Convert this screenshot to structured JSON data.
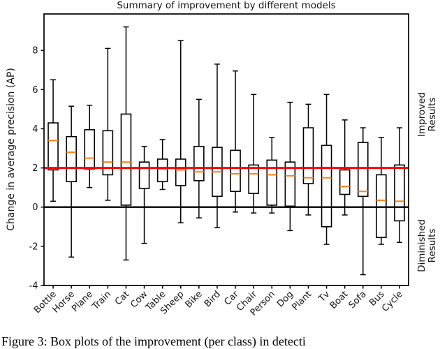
{
  "page": {
    "caption": "Figure 3: Box plots of the improvement (per class) in detecti"
  },
  "chart_data": {
    "type": "boxplot",
    "title": "Summary of improvement by different models",
    "ylabel": "Change in average precision (AP)",
    "yticks": [
      -4,
      -2,
      0,
      2,
      4,
      6,
      8
    ],
    "ylim": [
      -4,
      9.86
    ],
    "grid": false,
    "box_color": "#000000",
    "median_color": "#ff7f0e",
    "categories": [
      "Bottle",
      "Horse",
      "Plane",
      "Train",
      "Cat",
      "Cow",
      "Table",
      "Sheep",
      "Bike",
      "Bird",
      "Car",
      "Chair",
      "Person",
      "Dog",
      "Plant",
      "Tv",
      "Boat",
      "Sofa",
      "Bus",
      "Cycle"
    ],
    "boxes": [
      {
        "label": "Bottle",
        "whislo": 0.3,
        "q1": 1.9,
        "median": 3.4,
        "q3": 4.3,
        "whishi": 6.5
      },
      {
        "label": "Horse",
        "whislo": -2.55,
        "q1": 1.3,
        "median": 2.8,
        "q3": 3.6,
        "whishi": 5.15
      },
      {
        "label": "Plane",
        "whislo": 1.0,
        "q1": 1.95,
        "median": 2.5,
        "q3": 3.95,
        "whishi": 5.2
      },
      {
        "label": "Train",
        "whislo": 0.35,
        "q1": 1.65,
        "median": 2.3,
        "q3": 3.9,
        "whishi": 8.1
      },
      {
        "label": "Cat",
        "whislo": -2.7,
        "q1": 0.1,
        "median": 2.3,
        "q3": 4.75,
        "whishi": 9.2
      },
      {
        "label": "Cow",
        "whislo": -1.85,
        "q1": 0.95,
        "median": 2.0,
        "q3": 2.3,
        "whishi": 3.1
      },
      {
        "label": "Table",
        "whislo": 0.9,
        "q1": 1.3,
        "median": 1.95,
        "q3": 2.45,
        "whishi": 3.45
      },
      {
        "label": "Sheep",
        "whislo": -0.8,
        "q1": 1.1,
        "median": 1.9,
        "q3": 2.45,
        "whishi": 8.5
      },
      {
        "label": "Bike",
        "whislo": -0.55,
        "q1": 1.35,
        "median": 1.8,
        "q3": 3.1,
        "whishi": 5.5
      },
      {
        "label": "Bird",
        "whislo": -1.05,
        "q1": 0.55,
        "median": 1.8,
        "q3": 3.05,
        "whishi": 7.3
      },
      {
        "label": "Car",
        "whislo": -0.25,
        "q1": 0.8,
        "median": 1.7,
        "q3": 2.9,
        "whishi": 6.95
      },
      {
        "label": "Chair",
        "whislo": -0.3,
        "q1": 0.7,
        "median": 1.7,
        "q3": 2.15,
        "whishi": 5.75
      },
      {
        "label": "Person",
        "whislo": -0.3,
        "q1": 0.1,
        "median": 1.65,
        "q3": 2.4,
        "whishi": 3.55
      },
      {
        "label": "Dog",
        "whislo": -1.2,
        "q1": 0.05,
        "median": 1.6,
        "q3": 2.3,
        "whishi": 5.35
      },
      {
        "label": "Plant",
        "whislo": -0.4,
        "q1": 1.2,
        "median": 1.5,
        "q3": 4.05,
        "whishi": 5.25
      },
      {
        "label": "Tv",
        "whislo": -1.9,
        "q1": -1.0,
        "median": 1.5,
        "q3": 3.15,
        "whishi": 5.75
      },
      {
        "label": "Boat",
        "whislo": -0.4,
        "q1": 0.65,
        "median": 1.05,
        "q3": 1.9,
        "whishi": 4.45
      },
      {
        "label": "Sofa",
        "whislo": -3.45,
        "q1": 0.55,
        "median": 0.8,
        "q3": 3.3,
        "whishi": 4.05
      },
      {
        "label": "Bus",
        "whislo": -1.9,
        "q1": -1.55,
        "median": 0.35,
        "q3": 1.65,
        "whishi": 3.55
      },
      {
        "label": "Cycle",
        "whislo": -1.8,
        "q1": -0.7,
        "median": 0.3,
        "q3": 2.15,
        "whishi": 4.05
      }
    ],
    "reference_lines": [
      {
        "name": "zero-line",
        "value": 0,
        "color": "#000000",
        "width": 2.4
      },
      {
        "name": "improvement-line",
        "value": 2,
        "color": "#ff0000",
        "width": 3
      }
    ],
    "right_annotations": {
      "improved": "Improved\nResults",
      "diminished": "Diminished\nResults"
    },
    "legend_position": "none"
  }
}
